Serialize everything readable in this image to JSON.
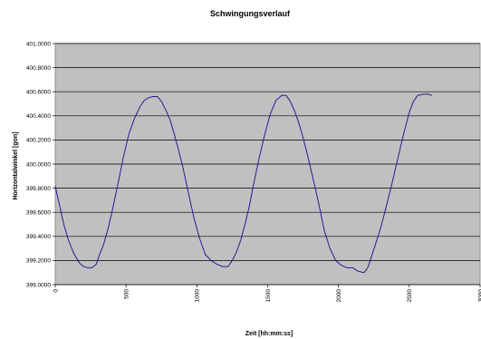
{
  "chart_data": {
    "type": "line",
    "title": "Schwingungsverlauf",
    "xlabel": "Zeit [hh:mm:ss]",
    "ylabel": "Horizontalwinkel [gon]",
    "xlim": [
      0,
      3000
    ],
    "ylim": [
      399.0,
      401.0
    ],
    "x_ticks": [
      0,
      500,
      1000,
      1500,
      2000,
      2500,
      3000
    ],
    "x_tick_labels": [
      "0",
      "500",
      "1000",
      "1500",
      "2000",
      "2500",
      "3000"
    ],
    "y_ticks": [
      399.0,
      399.2,
      399.4,
      399.6,
      399.8,
      400.0,
      400.2,
      400.4,
      400.6,
      400.8,
      401.0
    ],
    "y_tick_labels": [
      "399.0000",
      "399.2000",
      "399.4000",
      "399.6000",
      "399.8000",
      "400.0000",
      "400.2000",
      "400.4000",
      "400.6000",
      "400.8000",
      "401.0000"
    ],
    "grid": "horizontal",
    "legend": "none",
    "colors": {
      "plot_background": "#c0c0c0",
      "line": "#1f1f8f",
      "grid": "#000000"
    },
    "series": [
      {
        "x": [
          0,
          10,
          30,
          60,
          90,
          130,
          170,
          200,
          230,
          260,
          290,
          310,
          340,
          370,
          400,
          440,
          480,
          520,
          560,
          600,
          630,
          660,
          690,
          720,
          750,
          780,
          810,
          840,
          870,
          900,
          940,
          980,
          1020,
          1060,
          1100,
          1140,
          1180,
          1220,
          1250,
          1280,
          1310,
          1340,
          1370,
          1400,
          1440,
          1480,
          1520,
          1560,
          1600,
          1630,
          1660,
          1690,
          1720,
          1750,
          1780,
          1810,
          1840,
          1870,
          1900,
          1940,
          1980,
          2020,
          2060,
          2100,
          2140,
          2180,
          2195,
          2210,
          2230,
          2260,
          2300,
          2340,
          2380,
          2420,
          2460,
          2500,
          2530,
          2560,
          2600,
          2630,
          2660
        ],
        "y": [
          399.82,
          399.76,
          399.66,
          399.5,
          399.38,
          399.26,
          399.18,
          399.15,
          399.14,
          399.14,
          399.17,
          399.24,
          399.33,
          399.45,
          399.6,
          399.82,
          400.05,
          400.25,
          400.38,
          400.48,
          400.53,
          400.55,
          400.56,
          400.56,
          400.52,
          400.45,
          400.37,
          400.25,
          400.12,
          399.98,
          399.76,
          399.55,
          399.38,
          399.25,
          399.2,
          399.17,
          399.15,
          399.15,
          399.2,
          399.27,
          399.37,
          399.5,
          399.65,
          399.83,
          400.05,
          400.25,
          400.42,
          400.53,
          400.57,
          400.57,
          400.52,
          400.44,
          400.34,
          400.22,
          400.08,
          399.93,
          399.78,
          399.62,
          399.45,
          399.3,
          399.2,
          399.16,
          399.14,
          399.14,
          399.11,
          399.1,
          399.12,
          399.15,
          399.22,
          399.33,
          399.48,
          399.66,
          399.85,
          400.05,
          400.25,
          400.43,
          400.52,
          400.57,
          400.58,
          400.58,
          400.57
        ]
      }
    ]
  }
}
